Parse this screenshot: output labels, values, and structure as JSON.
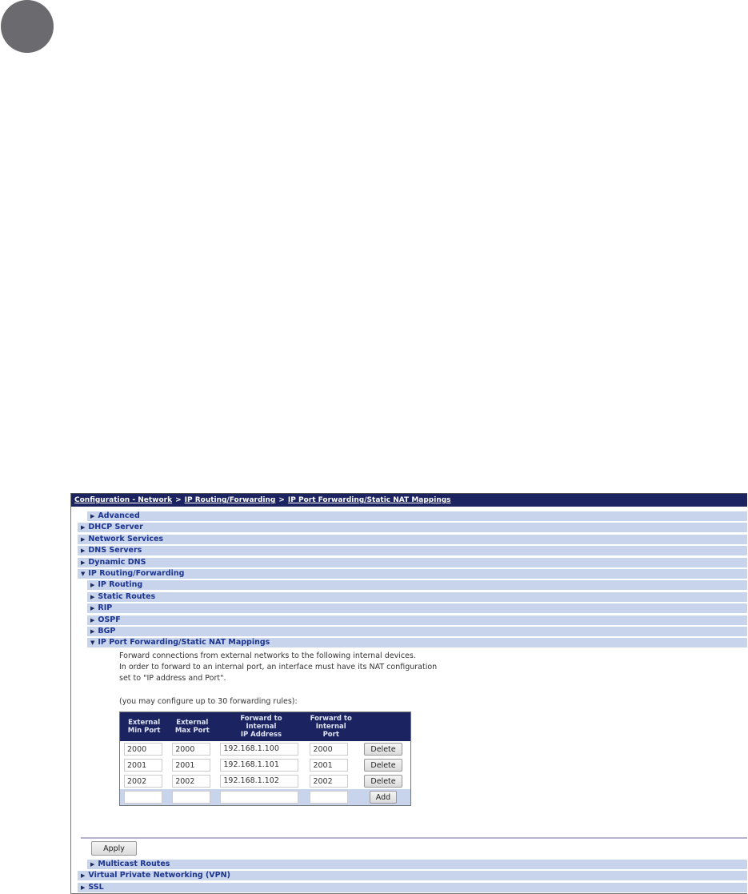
{
  "breadcrumb": [
    "Configuration - Network",
    "IP Routing/Forwarding",
    "IP Port Forwarding/Static NAT Mappings"
  ],
  "breadcrumb_sep": ">",
  "menu": [
    {
      "label": "Advanced",
      "expanded": false
    },
    {
      "label": "DHCP Server",
      "expanded": false
    },
    {
      "label": "Network Services",
      "expanded": false
    },
    {
      "label": "DNS Servers",
      "expanded": false
    },
    {
      "label": "Dynamic DNS",
      "expanded": false
    },
    {
      "label": "IP Routing/Forwarding",
      "expanded": true
    },
    {
      "label": "IP Routing",
      "expanded": false
    },
    {
      "label": "Static Routes",
      "expanded": false
    },
    {
      "label": "RIP",
      "expanded": false
    },
    {
      "label": "OSPF",
      "expanded": false
    },
    {
      "label": "BGP",
      "expanded": false
    },
    {
      "label": "IP Port Forwarding/Static NAT Mappings",
      "expanded": true
    }
  ],
  "description": [
    "Forward connections from external networks to the following internal devices.",
    "In order to forward to an internal port, an interface must have its NAT configuration",
    "set to \"IP address and Port\"."
  ],
  "limit_note": "(you may configure up to 30 forwarding rules):",
  "table": {
    "headers": [
      [
        "External",
        "Min Port"
      ],
      [
        "External",
        "Max Port"
      ],
      [
        "Forward to",
        "Internal",
        "IP Address"
      ],
      [
        "Forward to",
        "Internal",
        "Port"
      ]
    ],
    "rows": [
      [
        "2000",
        "2000",
        "192.168.1.100",
        "2000"
      ],
      [
        "2001",
        "2001",
        "192.168.1.101",
        "2001"
      ],
      [
        "2002",
        "2002",
        "192.168.1.102",
        "2002"
      ]
    ],
    "delete_label": "Delete",
    "add_label": "Add"
  },
  "apply_label": "Apply",
  "bottom_menu": [
    {
      "label": "Multicast Routes",
      "expanded": false
    },
    {
      "label": "Virtual Private Networking (VPN)",
      "expanded": false
    },
    {
      "label": "SSL",
      "expanded": false
    }
  ],
  "colors": {
    "header": "#1b2360",
    "row": "#c7d4ec",
    "link": "#1d3590"
  }
}
